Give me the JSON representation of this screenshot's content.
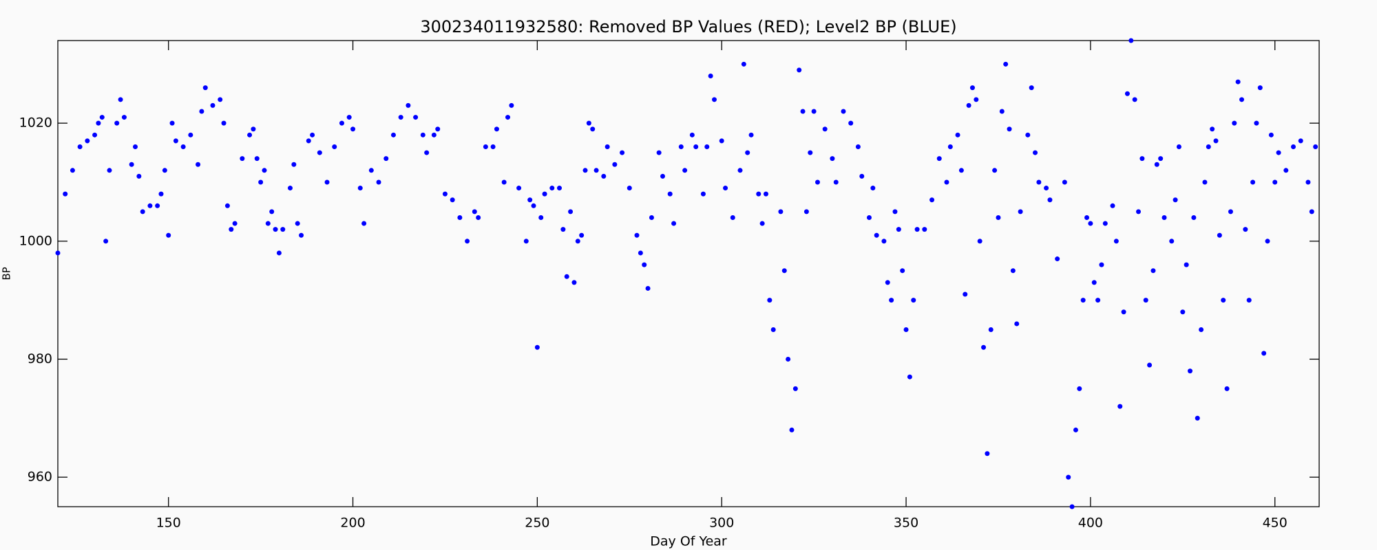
{
  "chart_data": {
    "type": "scatter",
    "title": "300234011932580: Removed BP Values (RED); Level2 BP (BLUE)",
    "x_label": "Day Of Year",
    "y_label": "BP",
    "xlim": [
      120,
      462
    ],
    "ylim": [
      955,
      1034
    ],
    "xticks": [
      150,
      200,
      250,
      300,
      350,
      400,
      450
    ],
    "yticks": [
      960,
      980,
      1000,
      1020
    ],
    "series": [
      {
        "name": "Level2 BP",
        "color": "#0000ff",
        "x": [
          120,
          122,
          124,
          126,
          128,
          130,
          131,
          132,
          133,
          134,
          136,
          137,
          138,
          140,
          141,
          142,
          143,
          145,
          147,
          148,
          149,
          150,
          151,
          152,
          154,
          156,
          158,
          159,
          160,
          162,
          164,
          165,
          166,
          167,
          168,
          170,
          172,
          173,
          174,
          175,
          176,
          177,
          178,
          179,
          180,
          181,
          183,
          184,
          185,
          186,
          188,
          189,
          191,
          193,
          195,
          197,
          199,
          200,
          202,
          203,
          205,
          207,
          209,
          211,
          213,
          215,
          217,
          219,
          220,
          222,
          223,
          225,
          227,
          229,
          231,
          233,
          234,
          236,
          238,
          239,
          241,
          242,
          243,
          245,
          247,
          248,
          249,
          250,
          251,
          252,
          254,
          256,
          257,
          258,
          259,
          260,
          261,
          262,
          263,
          264,
          265,
          266,
          268,
          269,
          271,
          273,
          275,
          277,
          278,
          279,
          280,
          281,
          283,
          284,
          286,
          287,
          289,
          290,
          292,
          293,
          295,
          296,
          297,
          298,
          300,
          301,
          303,
          305,
          306,
          307,
          308,
          310,
          311,
          312,
          313,
          314,
          316,
          317,
          318,
          319,
          320,
          321,
          322,
          323,
          324,
          325,
          326,
          328,
          330,
          331,
          333,
          335,
          337,
          338,
          340,
          341,
          342,
          344,
          345,
          346,
          347,
          348,
          349,
          350,
          351,
          352,
          353,
          355,
          357,
          359,
          361,
          362,
          364,
          365,
          366,
          367,
          368,
          369,
          370,
          371,
          372,
          373,
          374,
          375,
          376,
          377,
          378,
          379,
          380,
          381,
          383,
          384,
          385,
          386,
          388,
          389,
          391,
          393,
          394,
          395,
          396,
          397,
          398,
          399,
          400,
          401,
          402,
          403,
          404,
          406,
          407,
          408,
          409,
          410,
          411,
          412,
          413,
          414,
          415,
          416,
          417,
          418,
          419,
          420,
          422,
          423,
          424,
          425,
          426,
          427,
          428,
          429,
          430,
          431,
          432,
          433,
          434,
          435,
          436,
          437,
          438,
          439,
          440,
          441,
          442,
          443,
          444,
          445,
          446,
          447,
          448,
          449,
          450,
          451,
          453,
          455,
          457,
          459,
          460,
          461
        ],
        "values": [
          998,
          1008,
          1012,
          1016,
          1017,
          1018,
          1020,
          1021,
          1000,
          1012,
          1020,
          1024,
          1021,
          1013,
          1016,
          1011,
          1005,
          1006,
          1006,
          1008,
          1012,
          1001,
          1020,
          1017,
          1016,
          1018,
          1013,
          1022,
          1026,
          1023,
          1024,
          1020,
          1006,
          1002,
          1003,
          1014,
          1018,
          1019,
          1014,
          1010,
          1012,
          1003,
          1005,
          1002,
          998,
          1002,
          1009,
          1013,
          1003,
          1001,
          1017,
          1018,
          1015,
          1010,
          1016,
          1020,
          1021,
          1019,
          1009,
          1003,
          1012,
          1010,
          1014,
          1018,
          1021,
          1023,
          1021,
          1018,
          1015,
          1018,
          1019,
          1008,
          1007,
          1004,
          1000,
          1005,
          1004,
          1016,
          1016,
          1019,
          1010,
          1021,
          1023,
          1009,
          1000,
          1007,
          1006,
          982,
          1004,
          1008,
          1009,
          1009,
          1002,
          994,
          1005,
          993,
          1000,
          1001,
          1012,
          1020,
          1019,
          1012,
          1011,
          1016,
          1013,
          1015,
          1009,
          1001,
          998,
          996,
          992,
          1004,
          1015,
          1011,
          1008,
          1003,
          1016,
          1012,
          1018,
          1016,
          1008,
          1016,
          1028,
          1024,
          1017,
          1009,
          1004,
          1012,
          1030,
          1015,
          1018,
          1008,
          1003,
          1008,
          990,
          985,
          1005,
          995,
          980,
          968,
          975,
          1029,
          1022,
          1005,
          1015,
          1022,
          1010,
          1019,
          1014,
          1010,
          1022,
          1020,
          1016,
          1011,
          1004,
          1009,
          1001,
          1000,
          993,
          990,
          1005,
          1002,
          995,
          985,
          977,
          990,
          1002,
          1002,
          1007,
          1014,
          1010,
          1016,
          1018,
          1012,
          991,
          1023,
          1026,
          1024,
          1000,
          982,
          964,
          985,
          1012,
          1004,
          1022,
          1030,
          1019,
          995,
          986,
          1005,
          1018,
          1026,
          1015,
          1010,
          1009,
          1007,
          997,
          1010,
          960,
          955,
          968,
          975,
          990,
          1004,
          1003,
          993,
          990,
          996,
          1003,
          1006,
          1000,
          972,
          988,
          1025,
          1034,
          1024,
          1005,
          1014,
          990,
          979,
          995,
          1013,
          1014,
          1004,
          1000,
          1007,
          1016,
          988,
          996,
          978,
          1004,
          970,
          985,
          1010,
          1016,
          1019,
          1017,
          1001,
          990,
          975,
          1005,
          1020,
          1027,
          1024,
          1002,
          990,
          1010,
          1020,
          1026,
          981,
          1000,
          1018,
          1010,
          1015,
          1012,
          1016,
          1017,
          1010,
          1005,
          1016
        ]
      }
    ]
  }
}
